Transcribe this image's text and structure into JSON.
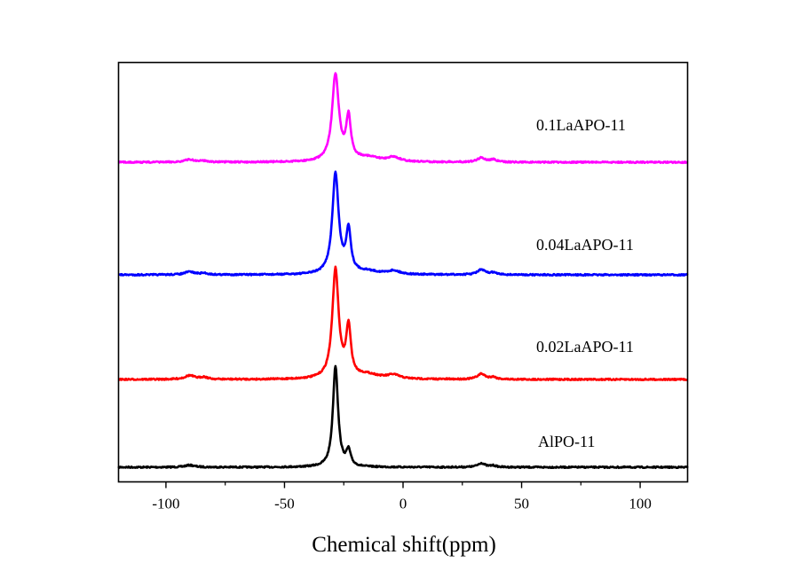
{
  "chart_data": {
    "type": "line",
    "title": "",
    "xlabel": "Chemical shift(ppm)",
    "ylabel": "",
    "xlim": [
      -120,
      120
    ],
    "x_ticks": [
      -100,
      -50,
      0,
      50,
      100
    ],
    "x_tick_labels": [
      "-100",
      "-50",
      "0",
      "50",
      "100"
    ],
    "x_minor_ticks": [
      -75,
      -25,
      25,
      75
    ],
    "grid": false,
    "y_axis_visible": false,
    "stacked_offset": true,
    "series": [
      {
        "name": "AlPO-11",
        "color": "#000000",
        "offset": 0,
        "peaks": [
          {
            "ppm": -90,
            "height": 0.02,
            "width": 2.5
          },
          {
            "ppm": -28.5,
            "height": 1.0,
            "width": 1.3
          },
          {
            "ppm": -23,
            "height": 0.15,
            "width": 1.1
          },
          {
            "ppm": 33,
            "height": 0.04,
            "width": 1.8
          },
          {
            "ppm": 38,
            "height": 0.015,
            "width": 1.5
          }
        ]
      },
      {
        "name": "0.02LaAPO-11",
        "color": "#ff0000",
        "offset": 1,
        "peaks": [
          {
            "ppm": -90,
            "height": 0.035,
            "width": 2.5
          },
          {
            "ppm": -84,
            "height": 0.02,
            "width": 1.8
          },
          {
            "ppm": -28.5,
            "height": 1.0,
            "width": 1.6
          },
          {
            "ppm": -23,
            "height": 0.45,
            "width": 1.2
          },
          {
            "ppm": -15,
            "height": 0.04,
            "width": 6
          },
          {
            "ppm": -4,
            "height": 0.035,
            "width": 3
          },
          {
            "ppm": 33,
            "height": 0.05,
            "width": 2
          },
          {
            "ppm": 38,
            "height": 0.02,
            "width": 1.5
          }
        ]
      },
      {
        "name": "0.04LaAPO-11",
        "color": "#0000ff",
        "offset": 2,
        "peaks": [
          {
            "ppm": -90,
            "height": 0.03,
            "width": 2.5
          },
          {
            "ppm": -84,
            "height": 0.015,
            "width": 1.8
          },
          {
            "ppm": -28.5,
            "height": 1.0,
            "width": 1.6
          },
          {
            "ppm": -23,
            "height": 0.42,
            "width": 1.2
          },
          {
            "ppm": -15,
            "height": 0.03,
            "width": 6
          },
          {
            "ppm": -4,
            "height": 0.035,
            "width": 3
          },
          {
            "ppm": 33,
            "height": 0.05,
            "width": 2
          },
          {
            "ppm": 38,
            "height": 0.02,
            "width": 1.5
          }
        ]
      },
      {
        "name": "0.1LaAPO-11",
        "color": "#ff00ff",
        "offset": 3,
        "peaks": [
          {
            "ppm": -90,
            "height": 0.03,
            "width": 2.5
          },
          {
            "ppm": -84,
            "height": 0.015,
            "width": 1.8
          },
          {
            "ppm": -28.5,
            "height": 1.0,
            "width": 1.7
          },
          {
            "ppm": -23,
            "height": 0.48,
            "width": 1.2
          },
          {
            "ppm": -15,
            "height": 0.05,
            "width": 6
          },
          {
            "ppm": -4,
            "height": 0.05,
            "width": 3
          },
          {
            "ppm": 33,
            "height": 0.05,
            "width": 2
          },
          {
            "ppm": 38,
            "height": 0.03,
            "width": 1.5
          }
        ]
      }
    ],
    "legend": "inline labels right of each trace"
  }
}
